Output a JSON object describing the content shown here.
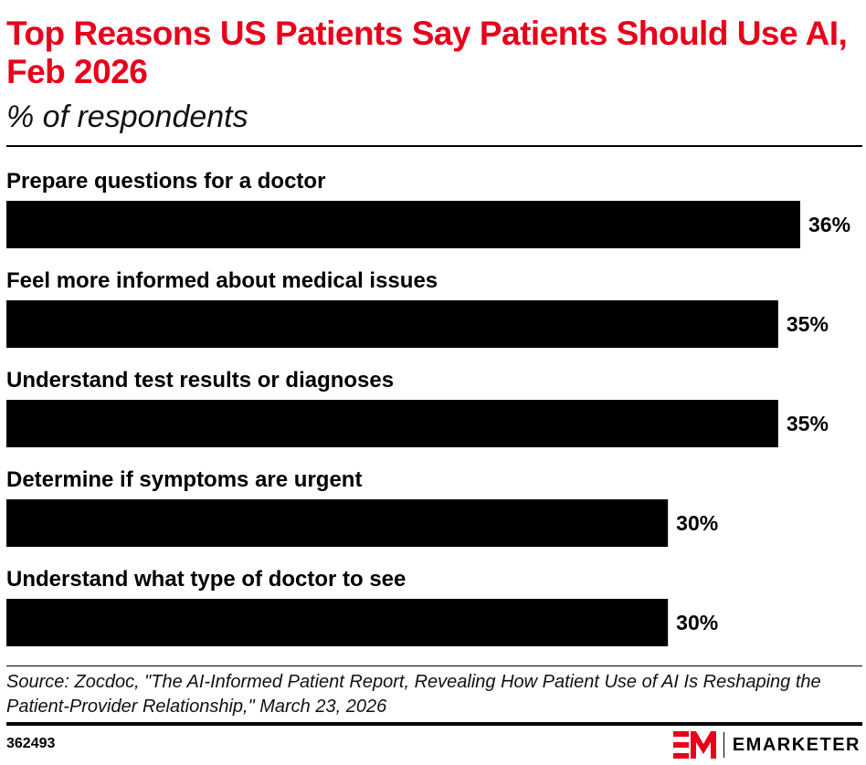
{
  "header": {
    "title": "Top Reasons US Patients Say Patients Should Use AI, Feb 2026",
    "subtitle": "% of respondents"
  },
  "chart_data": {
    "type": "bar",
    "orientation": "horizontal",
    "title": "Top Reasons US Patients Say Patients Should Use AI, Feb 2026",
    "subtitle": "% of respondents",
    "categories": [
      "Prepare questions for a doctor",
      "Feel more informed about medical issues",
      "Understand test results or diagnoses",
      "Determine if symptoms are urgent",
      "Understand what type of doctor to see"
    ],
    "values": [
      36,
      35,
      35,
      30,
      30
    ],
    "value_labels": [
      "36%",
      "35%",
      "35%",
      "30%",
      "30%"
    ],
    "xlim": [
      0,
      36
    ],
    "bar_color": "#000000",
    "grid": false,
    "legend": "none"
  },
  "footer": {
    "source": "Source: Zocdoc, \"The AI-Informed Patient Report, Revealing How Patient Use of AI Is Reshaping the Patient-Provider Relationship,\" March 23, 2026",
    "chart_id": "362493",
    "brand": "EMARKETER"
  },
  "colors": {
    "title": "#e8001b",
    "brand_accent": "#e8001b",
    "bars": "#000000"
  }
}
